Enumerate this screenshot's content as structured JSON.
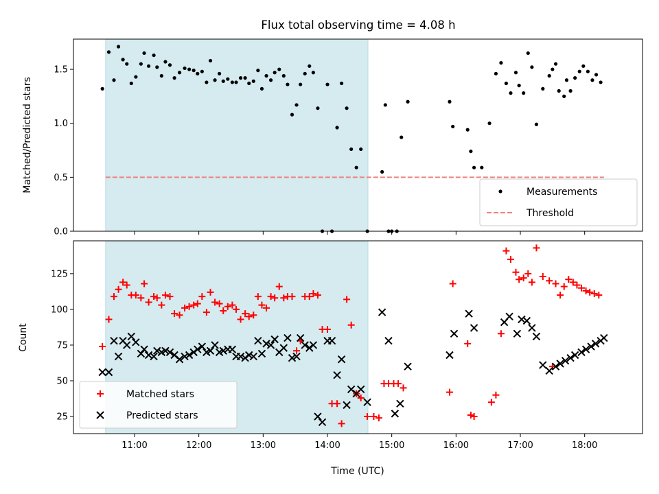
{
  "chart_data": [
    {
      "type": "scatter",
      "title": "Flux total observing time = 4.08 h",
      "ylabel": "Matched/Predicted stars",
      "xlabel": "",
      "xlim": [
        10.05,
        18.9
      ],
      "ylim": [
        0,
        1.78
      ],
      "yticks": [
        0.0,
        0.5,
        1.0,
        1.5
      ],
      "ytick_labels": [
        "0.0",
        "0.5",
        "1.0",
        "1.5"
      ],
      "xticks": [
        11,
        12,
        13,
        14,
        15,
        16,
        17,
        18
      ],
      "shaded_region": {
        "x": [
          10.55,
          14.63
        ],
        "color": "#d5ebf0"
      },
      "legend": {
        "placement": "lower-right"
      },
      "series": [
        {
          "name": "Measurements",
          "marker": "dot",
          "color": "#000000",
          "x": [
            10.5,
            10.6,
            10.68,
            10.75,
            10.82,
            10.88,
            10.95,
            11.02,
            11.1,
            11.15,
            11.22,
            11.3,
            11.35,
            11.42,
            11.48,
            11.55,
            11.62,
            11.7,
            11.78,
            11.85,
            11.92,
            11.98,
            12.05,
            12.12,
            12.18,
            12.25,
            12.32,
            12.38,
            12.45,
            12.52,
            12.58,
            12.65,
            12.72,
            12.78,
            12.85,
            12.92,
            12.98,
            13.05,
            13.12,
            13.18,
            13.25,
            13.32,
            13.38,
            13.45,
            13.52,
            13.58,
            13.65,
            13.72,
            13.78,
            13.85,
            13.92,
            14.0,
            14.07,
            14.15,
            14.22,
            14.3,
            14.37,
            14.45,
            14.52,
            14.62,
            14.85,
            14.9,
            14.95,
            15.0,
            15.08,
            15.15,
            15.25,
            15.9,
            15.95,
            16.18,
            16.23,
            16.28,
            16.4,
            16.52,
            16.62,
            16.7,
            16.78,
            16.85,
            16.93,
            16.98,
            17.05,
            17.12,
            17.18,
            17.25,
            17.35,
            17.45,
            17.5,
            17.55,
            17.6,
            17.68,
            17.72,
            17.78,
            17.85,
            17.92,
            17.98,
            18.05,
            18.12,
            18.18,
            18.25
          ],
          "y": [
            1.32,
            1.66,
            1.4,
            1.71,
            1.59,
            1.55,
            1.37,
            1.43,
            1.55,
            1.65,
            1.53,
            1.63,
            1.52,
            1.44,
            1.57,
            1.54,
            1.42,
            1.47,
            1.51,
            1.5,
            1.49,
            1.46,
            1.48,
            1.38,
            1.58,
            1.4,
            1.46,
            1.39,
            1.41,
            1.38,
            1.38,
            1.42,
            1.42,
            1.37,
            1.39,
            1.49,
            1.32,
            1.44,
            1.4,
            1.47,
            1.5,
            1.44,
            1.36,
            1.08,
            1.17,
            1.36,
            1.46,
            1.53,
            1.47,
            1.14,
            0.0,
            1.36,
            0.0,
            0.96,
            1.37,
            1.14,
            0.76,
            0.59,
            0.76,
            0.0,
            0.55,
            1.17,
            0.0,
            0.0,
            0.0,
            0.87,
            1.2,
            1.2,
            0.97,
            0.94,
            0.74,
            0.59,
            0.59,
            1.0,
            1.46,
            1.56,
            1.37,
            1.28,
            1.47,
            1.35,
            1.28,
            1.65,
            1.52,
            0.99,
            1.32,
            1.44,
            1.5,
            1.55,
            1.3,
            1.25,
            1.4,
            1.3,
            1.42,
            1.48,
            1.53,
            1.48,
            1.4,
            1.45,
            1.38
          ]
        },
        {
          "name": "Threshold",
          "marker": "dashed-line",
          "color": "#f08080",
          "x": [
            10.55,
            18.3
          ],
          "y": [
            0.5,
            0.5
          ]
        }
      ]
    },
    {
      "type": "scatter",
      "title": "",
      "ylabel": "Count",
      "xlabel": "Time (UTC)",
      "xlim": [
        10.05,
        18.9
      ],
      "ylim": [
        13,
        148
      ],
      "yticks": [
        25,
        50,
        75,
        100,
        125
      ],
      "ytick_labels": [
        "25",
        "50",
        "75",
        "100",
        "125"
      ],
      "xticks": [
        11,
        12,
        13,
        14,
        15,
        16,
        17,
        18
      ],
      "xtick_labels": [
        "11:00",
        "12:00",
        "13:00",
        "14:00",
        "15:00",
        "16:00",
        "17:00",
        "18:00"
      ],
      "shaded_region": {
        "x": [
          10.55,
          14.63
        ],
        "color": "#d5ebf0"
      },
      "legend": {
        "placement": "lower-left"
      },
      "series": [
        {
          "name": "Matched stars",
          "marker": "plus",
          "color": "#ff0000",
          "x": [
            10.5,
            10.6,
            10.68,
            10.75,
            10.82,
            10.88,
            10.95,
            11.02,
            11.1,
            11.15,
            11.22,
            11.3,
            11.35,
            11.42,
            11.48,
            11.55,
            11.62,
            11.7,
            11.78,
            11.85,
            11.92,
            11.98,
            12.05,
            12.12,
            12.18,
            12.25,
            12.32,
            12.38,
            12.45,
            12.52,
            12.58,
            12.65,
            12.72,
            12.78,
            12.85,
            12.92,
            12.98,
            13.05,
            13.12,
            13.18,
            13.25,
            13.32,
            13.38,
            13.45,
            13.52,
            13.58,
            13.65,
            13.72,
            13.78,
            13.85,
            13.92,
            14.0,
            14.07,
            14.15,
            14.22,
            14.3,
            14.37,
            14.45,
            14.52,
            14.62,
            14.72,
            14.8,
            14.88,
            14.95,
            15.03,
            15.1,
            15.18,
            15.9,
            15.95,
            16.18,
            16.23,
            16.28,
            16.55,
            16.62,
            16.7,
            16.78,
            16.85,
            16.93,
            16.98,
            17.05,
            17.12,
            17.18,
            17.25,
            17.35,
            17.45,
            17.5,
            17.55,
            17.62,
            17.68,
            17.75,
            17.82,
            17.88,
            17.95,
            18.02,
            18.08,
            18.15,
            18.22
          ],
          "y": [
            74,
            93,
            109,
            114,
            119,
            117,
            110,
            110,
            108,
            118,
            105,
            109,
            108,
            103,
            110,
            109,
            97,
            96,
            101,
            102,
            103,
            104,
            109,
            98,
            112,
            105,
            104,
            99,
            102,
            103,
            100,
            93,
            97,
            95,
            96,
            109,
            103,
            101,
            109,
            108,
            116,
            108,
            109,
            109,
            71,
            78,
            109,
            109,
            111,
            110,
            86,
            86,
            34,
            34,
            20,
            107,
            89,
            41,
            38,
            25,
            25,
            24,
            48,
            48,
            48,
            48,
            45,
            42,
            118,
            76,
            26,
            25,
            35,
            40,
            83,
            141,
            135,
            126,
            121,
            122,
            125,
            119,
            143,
            123,
            120,
            60,
            118,
            110,
            116,
            121,
            119,
            117,
            115,
            113,
            112,
            111,
            110
          ]
        },
        {
          "name": "Predicted stars",
          "marker": "x",
          "color": "#000000",
          "x": [
            10.5,
            10.6,
            10.68,
            10.75,
            10.82,
            10.88,
            10.95,
            11.02,
            11.1,
            11.15,
            11.22,
            11.3,
            11.35,
            11.42,
            11.48,
            11.55,
            11.62,
            11.7,
            11.78,
            11.85,
            11.92,
            11.98,
            12.05,
            12.12,
            12.18,
            12.25,
            12.32,
            12.38,
            12.45,
            12.52,
            12.58,
            12.65,
            12.72,
            12.78,
            12.85,
            12.92,
            12.98,
            13.05,
            13.12,
            13.18,
            13.25,
            13.32,
            13.38,
            13.45,
            13.52,
            13.58,
            13.65,
            13.72,
            13.78,
            13.85,
            13.92,
            14.0,
            14.07,
            14.15,
            14.22,
            14.3,
            14.37,
            14.45,
            14.52,
            14.62,
            14.85,
            14.95,
            15.05,
            15.13,
            15.25,
            15.9,
            15.97,
            16.2,
            16.28,
            16.75,
            16.83,
            16.95,
            17.02,
            17.1,
            17.18,
            17.25,
            17.35,
            17.45,
            17.55,
            17.62,
            17.7,
            17.78,
            17.85,
            17.95,
            18.02,
            18.1,
            18.17,
            18.25,
            18.3
          ],
          "y": [
            56,
            56,
            78,
            67,
            78,
            75,
            81,
            77,
            69,
            72,
            68,
            67,
            71,
            70,
            71,
            70,
            68,
            65,
            67,
            68,
            70,
            72,
            74,
            70,
            71,
            75,
            70,
            71,
            72,
            72,
            67,
            67,
            66,
            68,
            67,
            78,
            69,
            76,
            75,
            79,
            70,
            73,
            80,
            66,
            67,
            80,
            75,
            73,
            75,
            25,
            21,
            78,
            78,
            54,
            65,
            33,
            44,
            41,
            44,
            35,
            98,
            78,
            27,
            34,
            60,
            68,
            83,
            97,
            87,
            91,
            95,
            83,
            93,
            92,
            87,
            81,
            61,
            57,
            60,
            62,
            64,
            66,
            68,
            70,
            72,
            74,
            76,
            78,
            80
          ]
        }
      ]
    }
  ]
}
